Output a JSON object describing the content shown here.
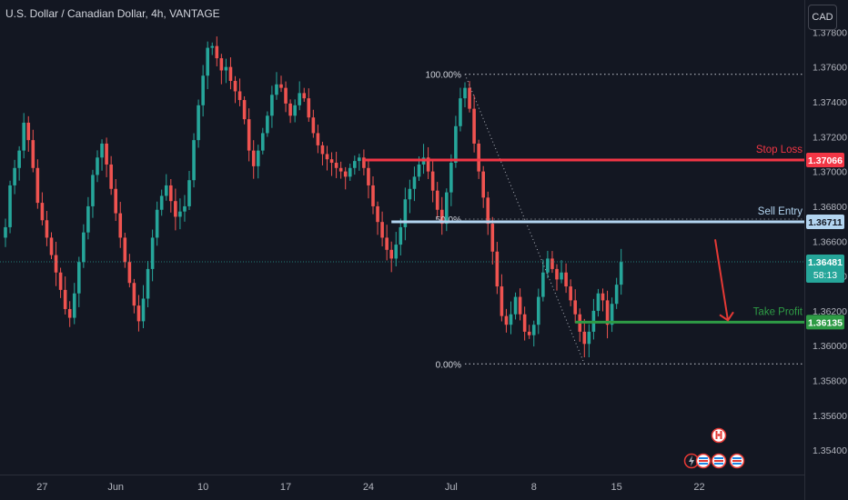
{
  "header": {
    "symbol_title": "U.S. Dollar / Canadian Dollar, 4h, VANTAGE",
    "currency_button": "CAD"
  },
  "colors": {
    "background": "#131722",
    "bull": "#26a69a",
    "bear": "#ef5350",
    "stop_loss": "#f23645",
    "sell_entry": "#b2d4f0",
    "take_profit": "#2e9b45",
    "axis_text": "#b2b5be"
  },
  "chart_data": {
    "type": "candlestick",
    "instrument": "USDCAD",
    "timeframe": "4h",
    "ylim": [
      1.3526,
      1.3788
    ],
    "y_ticks": [
      "1.37800",
      "1.37600",
      "1.37400",
      "1.37200",
      "1.37000",
      "1.36800",
      "1.36600",
      "1.36400",
      "1.36200",
      "1.36000",
      "1.35800",
      "1.35600",
      "1.35400"
    ],
    "x_ticks": [
      {
        "label": "27",
        "bar": 8
      },
      {
        "label": "Jun",
        "bar": 24
      },
      {
        "label": "10",
        "bar": 43
      },
      {
        "label": "17",
        "bar": 61
      },
      {
        "label": "24",
        "bar": 79
      },
      {
        "label": "Jul",
        "bar": 97
      },
      {
        "label": "8",
        "bar": 115
      },
      {
        "label": "15",
        "bar": 133
      },
      {
        "label": "22",
        "bar": 151
      }
    ],
    "last_price": {
      "value": 1.36481,
      "label": "1.36481",
      "countdown": "58:13"
    },
    "levels": [
      {
        "name": "Stop Loss",
        "value": 1.37066,
        "label": "1.37066",
        "from_bar": 78
      },
      {
        "name": "Sell Entry",
        "value": 1.36711,
        "label": "1.36711",
        "from_bar": 84
      },
      {
        "name": "Take Profit",
        "value": 1.36135,
        "label": "1.36135",
        "from_bar": 124
      }
    ],
    "fib": {
      "high": 1.37558,
      "low": 1.35895,
      "start_bar": 100,
      "end_bar": 126,
      "labels": [
        "100.00%",
        "50.0%",
        "0.00%"
      ]
    },
    "close": [
      1.3668,
      1.3692,
      1.3702,
      1.3712,
      1.3728,
      1.3718,
      1.3702,
      1.3682,
      1.3672,
      1.3662,
      1.3652,
      1.3642,
      1.3632,
      1.3621,
      1.3616,
      1.363,
      1.3648,
      1.3665,
      1.368,
      1.3698,
      1.3708,
      1.3716,
      1.3704,
      1.369,
      1.3676,
      1.3662,
      1.3648,
      1.3636,
      1.3623,
      1.3614,
      1.3627,
      1.3644,
      1.3662,
      1.3678,
      1.3686,
      1.3692,
      1.3683,
      1.3674,
      1.3677,
      1.368,
      1.3695,
      1.3718,
      1.3738,
      1.3755,
      1.3771,
      1.3772,
      1.3765,
      1.3758,
      1.376,
      1.3752,
      1.3746,
      1.3741,
      1.373,
      1.3712,
      1.3703,
      1.3712,
      1.3722,
      1.3732,
      1.3744,
      1.375,
      1.3748,
      1.3739,
      1.3732,
      1.3738,
      1.3745,
      1.3742,
      1.3731,
      1.3722,
      1.3715,
      1.371,
      1.3707,
      1.3705,
      1.3702,
      1.37,
      1.3697,
      1.3702,
      1.3706,
      1.3708,
      1.3702,
      1.3692,
      1.368,
      1.3671,
      1.3662,
      1.3655,
      1.365,
      1.3658,
      1.3668,
      1.3684,
      1.369,
      1.3697,
      1.3704,
      1.3708,
      1.37,
      1.3689,
      1.3678,
      1.367,
      1.3688,
      1.3705,
      1.3726,
      1.3742,
      1.3748,
      1.3736,
      1.3716,
      1.37,
      1.3685,
      1.367,
      1.3654,
      1.3634,
      1.3617,
      1.3612,
      1.3618,
      1.3628,
      1.3618,
      1.3608,
      1.3606,
      1.3612,
      1.3628,
      1.3642,
      1.365,
      1.3644,
      1.3638,
      1.3642,
      1.3634,
      1.3626,
      1.3618,
      1.3608,
      1.3601,
      1.3608,
      1.362,
      1.363,
      1.3626,
      1.3612,
      1.3624,
      1.3635,
      1.3648
    ]
  }
}
